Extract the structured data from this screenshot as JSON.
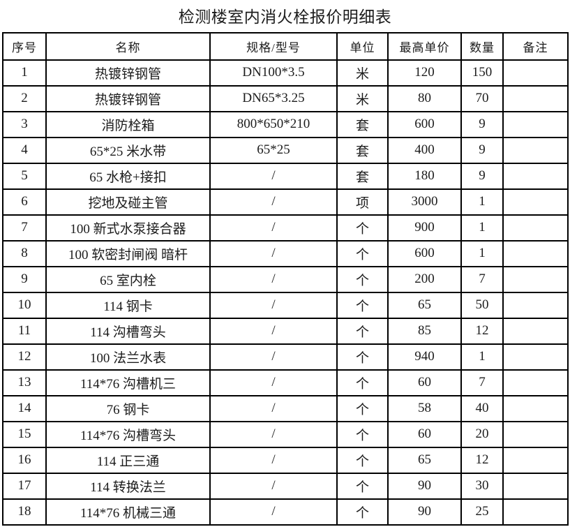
{
  "title": "检测楼室内消火栓报价明细表",
  "colors": {
    "background": "#ffffff",
    "text": "#1c1c1c",
    "border": "#000000"
  },
  "table": {
    "headers": [
      {
        "key": "no",
        "label": "序号"
      },
      {
        "key": "name",
        "label": "名称"
      },
      {
        "key": "spec",
        "label": "规格/型号"
      },
      {
        "key": "unit",
        "label": "单位"
      },
      {
        "key": "max_price",
        "label": "最高单价"
      },
      {
        "key": "qty",
        "label": "数量"
      },
      {
        "key": "remark",
        "label": "备注"
      }
    ],
    "rows": [
      {
        "no": "1",
        "name": "热镀锌钢管",
        "spec": "DN100*3.5",
        "unit": "米",
        "max_price": "120",
        "qty": "150",
        "remark": ""
      },
      {
        "no": "2",
        "name": "热镀锌钢管",
        "spec": "DN65*3.25",
        "unit": "米",
        "max_price": "80",
        "qty": "70",
        "remark": ""
      },
      {
        "no": "3",
        "name": "消防栓箱",
        "spec": "800*650*210",
        "unit": "套",
        "max_price": "600",
        "qty": "9",
        "remark": ""
      },
      {
        "no": "4",
        "name": "65*25 米水带",
        "spec": "65*25",
        "unit": "套",
        "max_price": "400",
        "qty": "9",
        "remark": ""
      },
      {
        "no": "5",
        "name": "65 水枪+接扣",
        "spec": "/",
        "unit": "套",
        "max_price": "180",
        "qty": "9",
        "remark": ""
      },
      {
        "no": "6",
        "name": "挖地及碰主管",
        "spec": "/",
        "unit": "项",
        "max_price": "3000",
        "qty": "1",
        "remark": ""
      },
      {
        "no": "7",
        "name": "100 新式水泵接合器",
        "spec": "/",
        "unit": "个",
        "max_price": "900",
        "qty": "1",
        "remark": ""
      },
      {
        "no": "8",
        "name": "100 软密封闸阀 暗杆",
        "spec": "/",
        "unit": "个",
        "max_price": "600",
        "qty": "1",
        "remark": ""
      },
      {
        "no": "9",
        "name": "65 室内栓",
        "spec": "/",
        "unit": "个",
        "max_price": "200",
        "qty": "7",
        "remark": ""
      },
      {
        "no": "10",
        "name": "114 钢卡",
        "spec": "/",
        "unit": "个",
        "max_price": "65",
        "qty": "50",
        "remark": ""
      },
      {
        "no": "11",
        "name": "114 沟槽弯头",
        "spec": "/",
        "unit": "个",
        "max_price": "85",
        "qty": "12",
        "remark": ""
      },
      {
        "no": "12",
        "name": "100 法兰水表",
        "spec": "/",
        "unit": "个",
        "max_price": "940",
        "qty": "1",
        "remark": ""
      },
      {
        "no": "13",
        "name": "114*76 沟槽机三",
        "spec": "/",
        "unit": "个",
        "max_price": "60",
        "qty": "7",
        "remark": ""
      },
      {
        "no": "14",
        "name": "76 钢卡",
        "spec": "/",
        "unit": "个",
        "max_price": "58",
        "qty": "40",
        "remark": ""
      },
      {
        "no": "15",
        "name": "114*76 沟槽弯头",
        "spec": "/",
        "unit": "个",
        "max_price": "60",
        "qty": "20",
        "remark": ""
      },
      {
        "no": "16",
        "name": "114 正三通",
        "spec": "/",
        "unit": "个",
        "max_price": "65",
        "qty": "12",
        "remark": ""
      },
      {
        "no": "17",
        "name": "114 转换法兰",
        "spec": "/",
        "unit": "个",
        "max_price": "90",
        "qty": "30",
        "remark": ""
      },
      {
        "no": "18",
        "name": "114*76 机械三通",
        "spec": "/",
        "unit": "个",
        "max_price": "90",
        "qty": "25",
        "remark": ""
      }
    ]
  }
}
